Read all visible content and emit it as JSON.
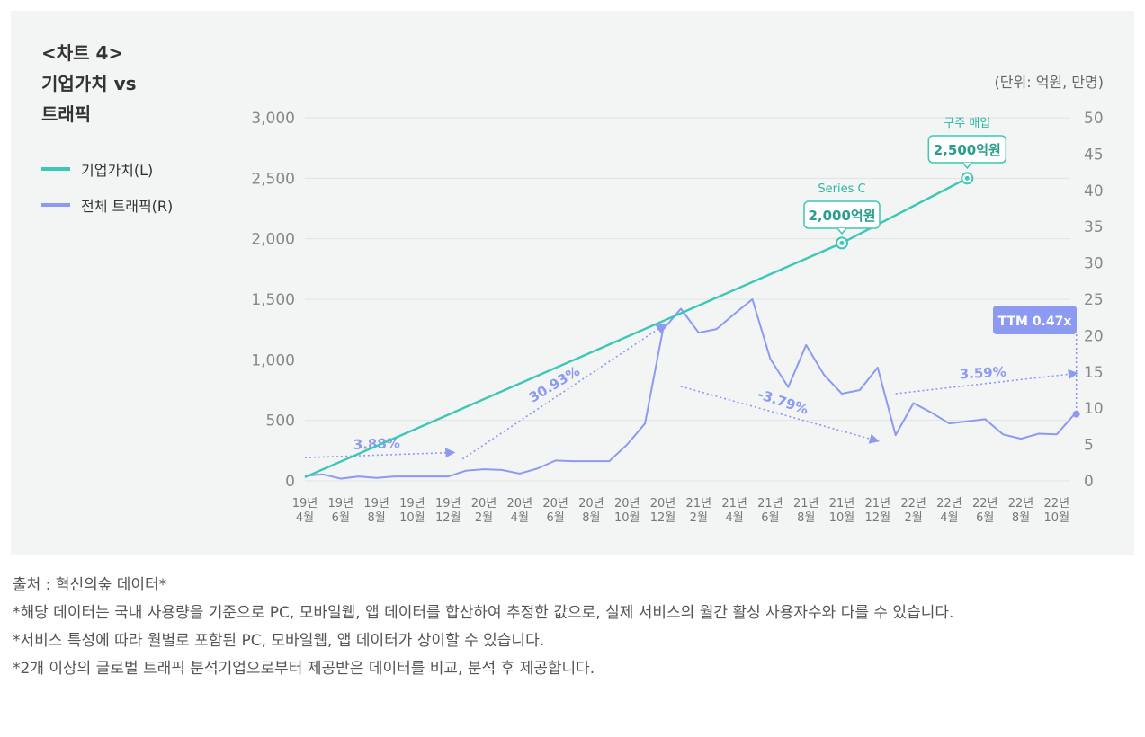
{
  "chart_data": {
    "type": "line",
    "title": [
      "<차트 4>",
      "기업가치 vs",
      "트래픽"
    ],
    "unit_label": "(단위: 억원, 만명)",
    "x_labels": [
      [
        "19년",
        "4월"
      ],
      [
        "19년",
        "6월"
      ],
      [
        "19년",
        "8월"
      ],
      [
        "19년",
        "10월"
      ],
      [
        "19년",
        "12월"
      ],
      [
        "20년",
        "2월"
      ],
      [
        "20년",
        "4월"
      ],
      [
        "20년",
        "6월"
      ],
      [
        "20년",
        "8월"
      ],
      [
        "20년",
        "10월"
      ],
      [
        "20년",
        "12월"
      ],
      [
        "21년",
        "2월"
      ],
      [
        "21년",
        "4월"
      ],
      [
        "21년",
        "6월"
      ],
      [
        "21년",
        "8월"
      ],
      [
        "21년",
        "10월"
      ],
      [
        "21년",
        "12월"
      ],
      [
        "22년",
        "2월"
      ],
      [
        "22년",
        "4월"
      ],
      [
        "22년",
        "6월"
      ],
      [
        "22년",
        "8월"
      ],
      [
        "22년",
        "10월"
      ]
    ],
    "x_label_months": [
      0,
      2,
      4,
      6,
      8,
      10,
      12,
      14,
      16,
      18,
      20,
      22,
      24,
      26,
      28,
      30,
      32,
      34,
      36,
      38,
      40,
      42
    ],
    "left_axis": {
      "ticks": [
        "0",
        "500",
        "1,000",
        "1,500",
        "2,000",
        "2,500",
        "3,000"
      ],
      "values": [
        0,
        500,
        1000,
        1500,
        2000,
        2500,
        3000
      ],
      "max": 3000
    },
    "right_axis": {
      "ticks": [
        "0",
        "5",
        "10",
        "15",
        "20",
        "25",
        "30",
        "35",
        "40",
        "45",
        "50"
      ],
      "values": [
        0,
        5,
        10,
        15,
        20,
        25,
        30,
        35,
        40,
        45,
        50
      ],
      "max": 50
    },
    "series": [
      {
        "name": "기업가치(L)",
        "axis": "left",
        "color": "#3cc8b4",
        "points": [
          [
            0,
            30
          ],
          [
            30,
            1965
          ],
          [
            37,
            2500
          ]
        ]
      },
      {
        "name": "전체 트래픽(R)",
        "axis": "right",
        "color": "#8c9af2",
        "points": [
          [
            0,
            0.7
          ],
          [
            1,
            0.9
          ],
          [
            2,
            0.3
          ],
          [
            3,
            0.6
          ],
          [
            4,
            0.4
          ],
          [
            5,
            0.6
          ],
          [
            6,
            0.6
          ],
          [
            7,
            0.6
          ],
          [
            8,
            0.6
          ],
          [
            9,
            1.4
          ],
          [
            10,
            1.6
          ],
          [
            11,
            1.5
          ],
          [
            12,
            1.0
          ],
          [
            13,
            1.7
          ],
          [
            14,
            2.8
          ],
          [
            15,
            2.7
          ],
          [
            16,
            2.7
          ],
          [
            17,
            2.7
          ],
          [
            18,
            5.0
          ],
          [
            19,
            7.9
          ],
          [
            20,
            20.8
          ],
          [
            21,
            23.7
          ],
          [
            22,
            20.4
          ],
          [
            23,
            20.9
          ],
          [
            24,
            23.0
          ],
          [
            25,
            25.0
          ],
          [
            26,
            16.8
          ],
          [
            27,
            12.9
          ],
          [
            28,
            18.7
          ],
          [
            29,
            14.6
          ],
          [
            30,
            12.0
          ],
          [
            31,
            12.5
          ],
          [
            32,
            15.6
          ],
          [
            33,
            6.3
          ],
          [
            34,
            10.7
          ],
          [
            35,
            9.4
          ],
          [
            36,
            7.9
          ],
          [
            37,
            8.2
          ],
          [
            38,
            8.5
          ],
          [
            39,
            6.4
          ],
          [
            40,
            5.8
          ],
          [
            41,
            6.5
          ],
          [
            42,
            6.4
          ],
          [
            43,
            9.2
          ]
        ]
      }
    ],
    "annotations": {
      "series_c_label": "Series C",
      "series_c_value": "2,000억원",
      "acquisition_label": "구주 매입",
      "acquisition_value": "2,500억원",
      "ttm_label": "TTM 0.47x",
      "growth_1": "3.88%",
      "growth_2": "30.93%",
      "growth_3": "-3.79%",
      "growth_4": "3.59%"
    }
  },
  "legend": {
    "items": [
      {
        "label": "기업가치(L)",
        "color": "#3cc8b4"
      },
      {
        "label": "전체 트래픽(R)",
        "color": "#8c9af2"
      }
    ]
  },
  "notes": {
    "source": "출처 : 혁신의숲 데이터*",
    "note1": "*해당 데이터는 국내 사용량을 기준으로 PC, 모바일웹, 앱 데이터를 합산하여 추정한 값으로, 실제 서비스의 월간 활성 사용자수와 다를 수 있습니다.",
    "note2": "*서비스 특성에 따라 월별로 포함된 PC, 모바일웹, 앱 데이터가 상이할 수 있습니다.",
    "note3": "*2개 이상의 글로벌 트래픽 분석기업으로부터 제공받은 데이터를 비교, 분석 후 제공합니다."
  }
}
